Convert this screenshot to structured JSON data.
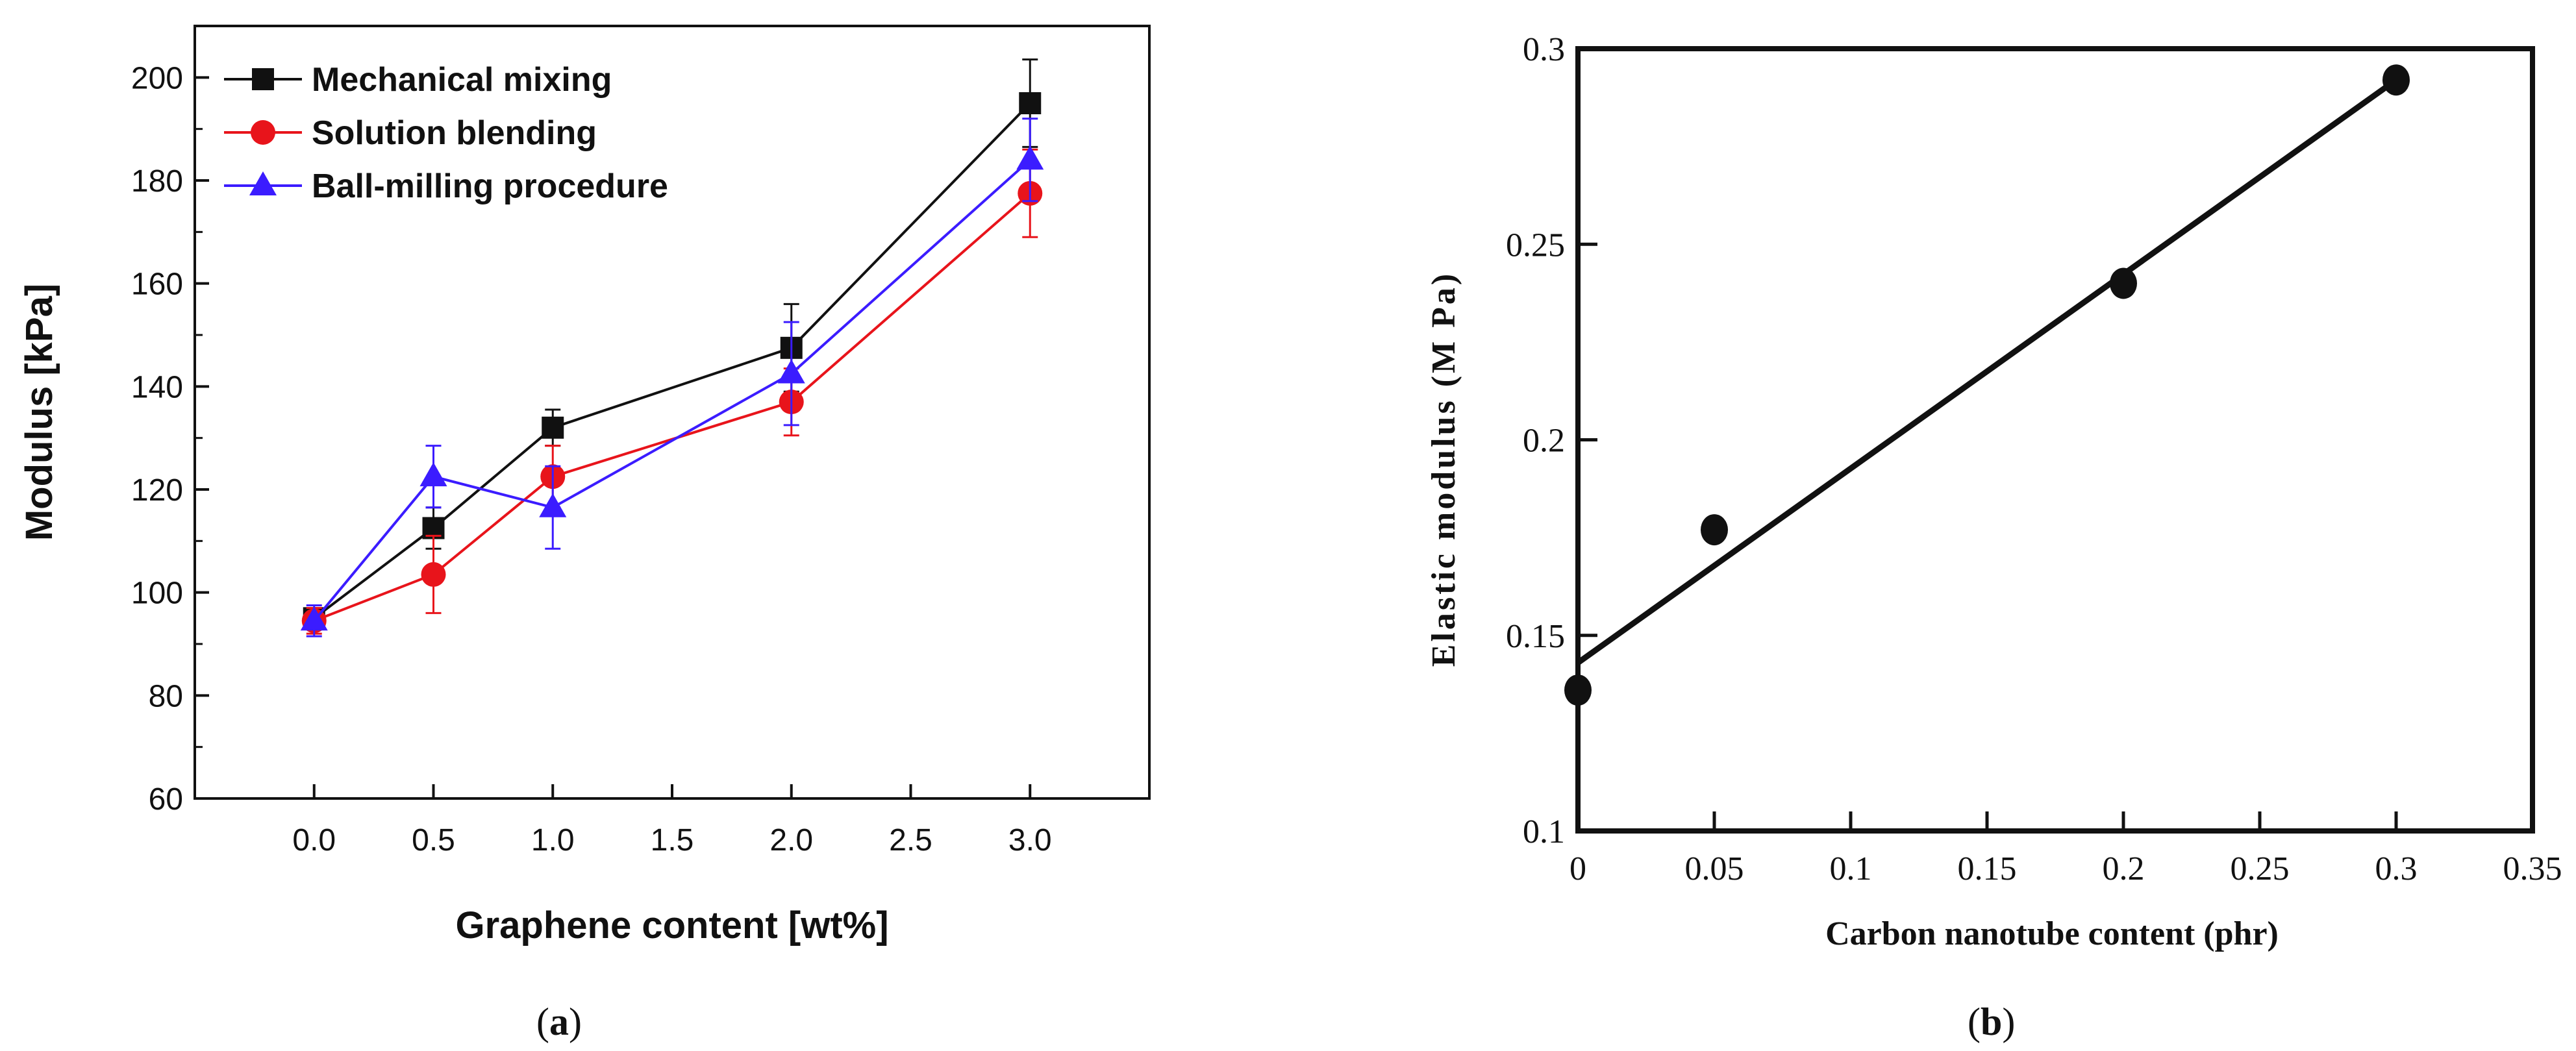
{
  "colors": {
    "mechanical": "#111111",
    "solution": "#e8141b",
    "ball": "#3b1cff",
    "axis": "#111111"
  },
  "chart_data": [
    {
      "panel": "a",
      "type": "line",
      "xlabel": "Graphene content [wt%]",
      "ylabel": "Modulus [kPa]",
      "xlim": [
        -0.5,
        3.5
      ],
      "ylim": [
        60,
        210
      ],
      "x_tick_labels": [
        "0.0",
        "0.5",
        "1.0",
        "1.5",
        "2.0",
        "2.5",
        "3.0"
      ],
      "x_tick_positions": [
        0,
        0.5,
        1,
        1.5,
        2,
        2.5,
        3
      ],
      "y_ticks": [
        60,
        80,
        100,
        120,
        140,
        160,
        180,
        200
      ],
      "x": [
        0,
        0.5,
        1,
        2,
        3
      ],
      "legend_position": "top-left",
      "series": [
        {
          "name": "Mechanical mixing",
          "marker": "square",
          "color": "#111111",
          "values": [
            95,
            112.5,
            132,
            147.5,
            195
          ],
          "errors": [
            2,
            4,
            3.5,
            8.5,
            8.5
          ]
        },
        {
          "name": "Solution blending",
          "marker": "circle",
          "color": "#e8141b",
          "values": [
            94.5,
            103.5,
            122.5,
            137,
            177.5
          ],
          "errors": [
            2.5,
            7.5,
            6,
            6.5,
            8.5
          ]
        },
        {
          "name": "Ball-milling procedure",
          "marker": "triangle",
          "color": "#3b1cff",
          "values": [
            94.5,
            122.5,
            116.5,
            142.5,
            184
          ],
          "errors": [
            3,
            6,
            8,
            10,
            8
          ]
        }
      ]
    },
    {
      "panel": "b",
      "type": "scatter",
      "xlabel": "Carbon nanotube content (phr)",
      "ylabel": "Elastic modulus (M Pa)",
      "xlim": [
        0,
        0.35
      ],
      "ylim": [
        0.1,
        0.3
      ],
      "x_tick_labels": [
        "0",
        "0.05",
        "0.1",
        "0.15",
        "0.2",
        "0.25",
        "0.3",
        "0.35"
      ],
      "x_tick_positions": [
        0,
        0.05,
        0.1,
        0.15,
        0.2,
        0.25,
        0.3,
        0.35
      ],
      "y_tick_labels": [
        "0.1",
        "0.15",
        "0.2",
        "0.25",
        "0.3"
      ],
      "y_tick_positions": [
        0.1,
        0.15,
        0.2,
        0.25,
        0.3
      ],
      "points": {
        "x": [
          0,
          0.05,
          0.2,
          0.3
        ],
        "y": [
          0.136,
          0.177,
          0.24,
          0.292
        ]
      },
      "fit_line": {
        "x": [
          0,
          0.3
        ],
        "y": [
          0.143,
          0.292
        ]
      }
    }
  ],
  "captions": {
    "a": {
      "open": "(",
      "letter": "a",
      "close": ")"
    },
    "b": {
      "open": "(",
      "letter": "b",
      "close": ")"
    }
  }
}
